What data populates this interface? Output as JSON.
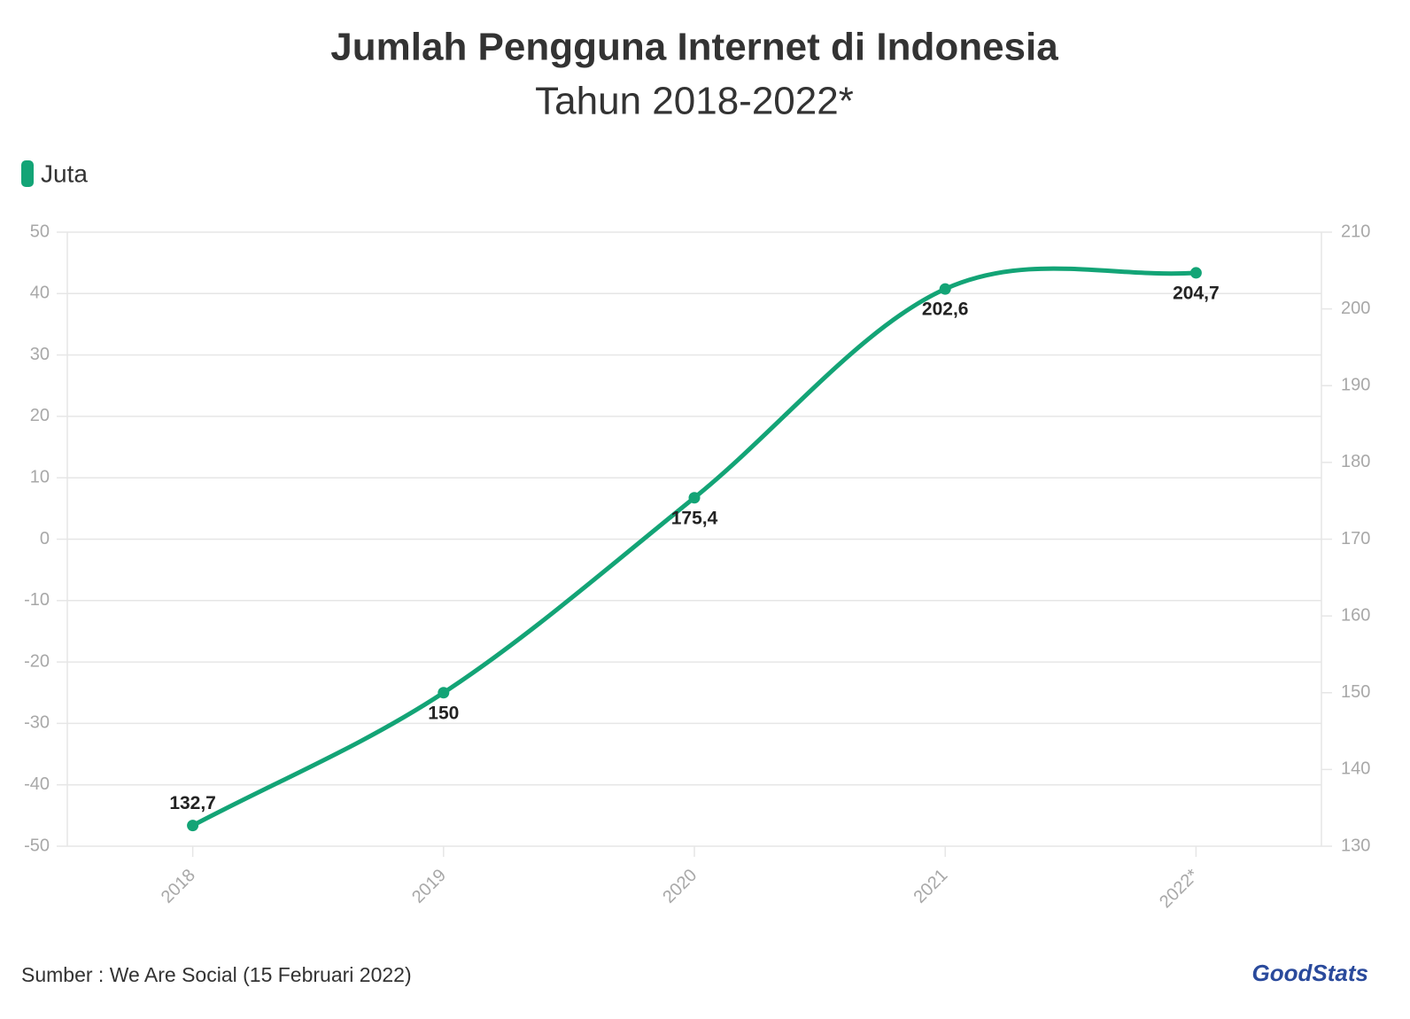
{
  "chart_data": {
    "type": "line",
    "title": "Jumlah Pengguna Internet di Indonesia",
    "subtitle": "Tahun 2018-2022*",
    "categories": [
      "2018",
      "2019",
      "2020",
      "2021",
      "2022*"
    ],
    "series": [
      {
        "name": "Juta",
        "color": "#13a476",
        "axis": "y2",
        "values": [
          132.7,
          150,
          175.4,
          202.6,
          204.7
        ],
        "value_labels": [
          "132,7",
          "150",
          "175,4",
          "202,6",
          "204,7"
        ]
      }
    ],
    "ylim": [
      -50,
      50
    ],
    "yticks": [
      -50,
      -40,
      -30,
      -20,
      -10,
      0,
      10,
      20,
      30,
      40,
      50
    ],
    "y2lim": [
      130,
      210
    ],
    "y2ticks": [
      130,
      140,
      150,
      160,
      170,
      180,
      190,
      200,
      210
    ],
    "grid": true,
    "legend": "top-left",
    "source": "Sumber : We Are Social (15 Februari 2022)",
    "logo": "GoodStats"
  }
}
